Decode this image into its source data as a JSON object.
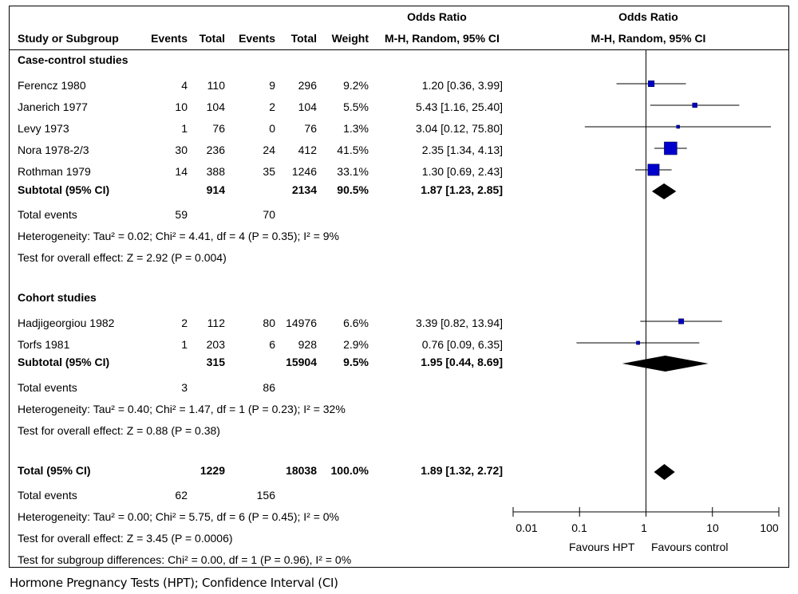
{
  "header": {
    "or_group_left": "Odds Ratio",
    "or_group_right": "Odds Ratio",
    "col_study": "Study or Subgroup",
    "col_events1": "Events",
    "col_total1": "Total",
    "col_events2": "Events",
    "col_total2": "Total",
    "col_weight": "Weight",
    "col_ci_left": "M-H, Random, 95% CI",
    "col_ci_right": "M-H, Random, 95% CI"
  },
  "groups": [
    {
      "title": "Case-control studies",
      "studies": [
        {
          "name": "Ferencz 1980",
          "e1": "4",
          "t1": "110",
          "e2": "9",
          "t2": "296",
          "weight": "9.2%",
          "ci": "1.20 [0.36, 3.99]"
        },
        {
          "name": "Janerich 1977",
          "e1": "10",
          "t1": "104",
          "e2": "2",
          "t2": "104",
          "weight": "5.5%",
          "ci": "5.43 [1.16, 25.40]"
        },
        {
          "name": "Levy 1973",
          "e1": "1",
          "t1": "76",
          "e2": "0",
          "t2": "76",
          "weight": "1.3%",
          "ci": "3.04 [0.12, 75.80]"
        },
        {
          "name": "Nora 1978-2/3",
          "e1": "30",
          "t1": "236",
          "e2": "24",
          "t2": "412",
          "weight": "41.5%",
          "ci": "2.35 [1.34, 4.13]"
        },
        {
          "name": "Rothman 1979",
          "e1": "14",
          "t1": "388",
          "e2": "35",
          "t2": "1246",
          "weight": "33.1%",
          "ci": "1.30 [0.69, 2.43]"
        }
      ],
      "subtotal": {
        "label": "Subtotal (95% CI)",
        "t1": "914",
        "t2": "2134",
        "weight": "90.5%",
        "ci": "1.87 [1.23, 2.85]"
      },
      "total_events": {
        "label": "Total events",
        "e1": "59",
        "e2": "70"
      },
      "heterogeneity": "Heterogeneity: Tau² = 0.02; Chi² = 4.41, df = 4 (P = 0.35); I² = 9%",
      "overall": "Test for overall effect: Z = 2.92 (P = 0.004)"
    },
    {
      "title": "Cohort studies",
      "studies": [
        {
          "name": "Hadjigeorgiou 1982",
          "e1": "2",
          "t1": "112",
          "e2": "80",
          "t2": "14976",
          "weight": "6.6%",
          "ci": "3.39 [0.82, 13.94]"
        },
        {
          "name": "Torfs 1981",
          "e1": "1",
          "t1": "203",
          "e2": "6",
          "t2": "928",
          "weight": "2.9%",
          "ci": "0.76 [0.09, 6.35]"
        }
      ],
      "subtotal": {
        "label": "Subtotal (95% CI)",
        "t1": "315",
        "t2": "15904",
        "weight": "9.5%",
        "ci": "1.95 [0.44, 8.69]"
      },
      "total_events": {
        "label": "Total events",
        "e1": "3",
        "e2": "86"
      },
      "heterogeneity": "Heterogeneity: Tau² = 0.40; Chi² = 1.47, df = 1 (P = 0.23); I² = 32%",
      "overall": "Test for overall effect: Z = 0.88 (P = 0.38)"
    }
  ],
  "total": {
    "label": "Total (95% CI)",
    "t1": "1229",
    "t2": "18038",
    "weight": "100.0%",
    "ci": "1.89 [1.32, 2.72]"
  },
  "total_events": {
    "label": "Total events",
    "e1": "62",
    "e2": "156"
  },
  "heterogeneity": "Heterogeneity: Tau² = 0.00; Chi² = 5.75, df = 6 (P = 0.45); I² = 0%",
  "overall": "Test for overall effect: Z = 3.45 (P = 0.0006)",
  "subgroup_diff": "Test for subgroup differences: Chi² = 0.00, df = 1 (P = 0.96), I² = 0%",
  "axis": {
    "favours_left": "Favours HPT",
    "favours_right": "Favours control"
  },
  "footnote": "Hormone Pregnancy Tests (HPT); Confidence Interval (CI)",
  "colors": {
    "study_marker": "#0000cc",
    "diamond": "#000000",
    "line": "#000000"
  },
  "chart_data": {
    "type": "scatter",
    "subtype": "forest-plot",
    "xscale": "log",
    "xlim": [
      0.01,
      100
    ],
    "xticks": [
      0.01,
      0.1,
      1,
      10,
      100
    ],
    "xtick_labels": [
      "0.01",
      "0.1",
      "1",
      "10",
      "100"
    ],
    "reference_line": 1,
    "studies": [
      {
        "name": "Ferencz 1980",
        "or": 1.2,
        "lo": 0.36,
        "hi": 3.99,
        "weight": 9.2
      },
      {
        "name": "Janerich 1977",
        "or": 5.43,
        "lo": 1.16,
        "hi": 25.4,
        "weight": 5.5
      },
      {
        "name": "Levy 1973",
        "or": 3.04,
        "lo": 0.12,
        "hi": 75.8,
        "weight": 1.3
      },
      {
        "name": "Nora 1978-2/3",
        "or": 2.35,
        "lo": 1.34,
        "hi": 4.13,
        "weight": 41.5
      },
      {
        "name": "Rothman 1979",
        "or": 1.3,
        "lo": 0.69,
        "hi": 2.43,
        "weight": 33.1
      },
      {
        "name": "Hadjigeorgiou 1982",
        "or": 3.39,
        "lo": 0.82,
        "hi": 13.94,
        "weight": 6.6
      },
      {
        "name": "Torfs 1981",
        "or": 0.76,
        "lo": 0.09,
        "hi": 6.35,
        "weight": 2.9
      }
    ],
    "pooled": [
      {
        "name": "Subtotal (95% CI)",
        "group": "Case-control studies",
        "or": 1.87,
        "lo": 1.23,
        "hi": 2.85
      },
      {
        "name": "Subtotal (95% CI)",
        "group": "Cohort studies",
        "or": 1.95,
        "lo": 0.44,
        "hi": 8.69
      },
      {
        "name": "Total (95% CI)",
        "or": 1.89,
        "lo": 1.32,
        "hi": 2.72
      }
    ]
  }
}
